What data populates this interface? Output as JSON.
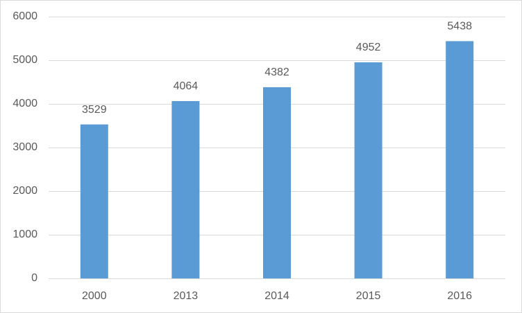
{
  "chart_data": {
    "type": "bar",
    "categories": [
      "2000",
      "2013",
      "2014",
      "2015",
      "2016"
    ],
    "values": [
      3529,
      4064,
      4382,
      4952,
      5438
    ],
    "color": "#5b9bd5",
    "ylim": [
      0,
      6000
    ],
    "yticks": [
      0,
      1000,
      2000,
      3000,
      4000,
      5000,
      6000
    ],
    "grid": true
  }
}
